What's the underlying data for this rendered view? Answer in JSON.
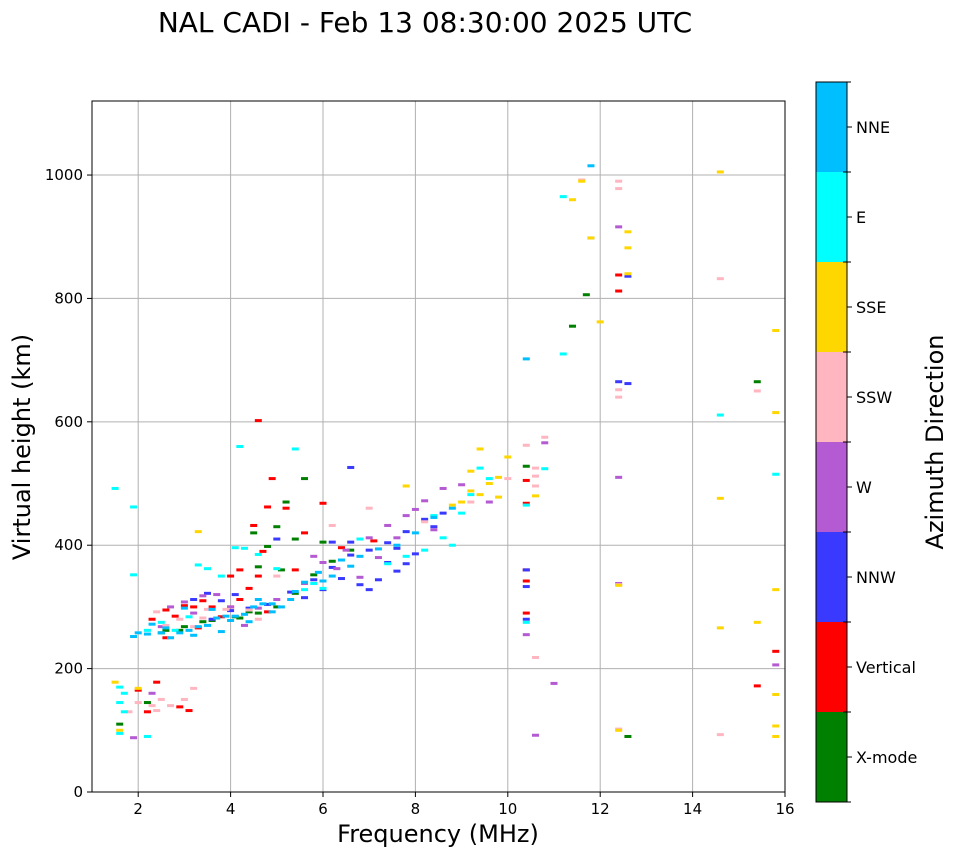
{
  "chart_data": {
    "type": "scatter",
    "title": "NAL CADI - Feb 13 08:30:00 2025 UTC",
    "xlabel": "Frequency (MHz)",
    "ylabel": "Virtual height (km)",
    "xlim": [
      1,
      16
    ],
    "ylim": [
      0,
      1120
    ],
    "xticks": [
      2,
      4,
      6,
      8,
      10,
      12,
      14,
      16
    ],
    "yticks": [
      0,
      200,
      400,
      600,
      800,
      1000
    ],
    "grid": true,
    "colorbar": {
      "label": "Azimuth Direction",
      "categories": [
        {
          "name": "X-mode",
          "color": "#008000"
        },
        {
          "name": "Vertical",
          "color": "#ff0000"
        },
        {
          "name": "NNW",
          "color": "#3a3aff"
        },
        {
          "name": "W",
          "color": "#b45ad2"
        },
        {
          "name": "SSW",
          "color": "#ffb6c1"
        },
        {
          "name": "SSE",
          "color": "#ffd700"
        },
        {
          "name": "E",
          "color": "#00ffff"
        },
        {
          "name": "NNE",
          "color": "#00bfff"
        }
      ]
    },
    "series": [
      {
        "name": "X-mode",
        "points": [
          [
            2.6,
            262
          ],
          [
            3.0,
            268
          ],
          [
            3.6,
            278
          ],
          [
            4.2,
            282
          ],
          [
            4.6,
            290
          ],
          [
            5.0,
            300
          ],
          [
            5.4,
            322
          ],
          [
            5.8,
            352
          ],
          [
            6.2,
            374
          ],
          [
            6.6,
            392
          ],
          [
            4.8,
            398
          ],
          [
            5.0,
            430
          ],
          [
            5.2,
            470
          ],
          [
            5.6,
            508
          ],
          [
            4.6,
            365
          ],
          [
            5.4,
            410
          ],
          [
            4.4,
            292
          ],
          [
            3.4,
            276
          ],
          [
            2.9,
            262
          ],
          [
            2.5,
            258
          ],
          [
            4.1,
            284
          ],
          [
            5.1,
            360
          ],
          [
            6.0,
            405
          ],
          [
            10.4,
            528
          ],
          [
            11.4,
            755
          ],
          [
            11.7,
            806
          ],
          [
            12.6,
            90
          ],
          [
            15.4,
            665
          ],
          [
            1.6,
            110
          ],
          [
            2.2,
            145
          ],
          [
            4.5,
            420
          ]
        ]
      },
      {
        "name": "Vertical",
        "points": [
          [
            2.3,
            280
          ],
          [
            2.6,
            295
          ],
          [
            2.8,
            285
          ],
          [
            3.0,
            302
          ],
          [
            3.2,
            300
          ],
          [
            3.4,
            310
          ],
          [
            3.6,
            300
          ],
          [
            3.8,
            284
          ],
          [
            4.0,
            300
          ],
          [
            4.2,
            312
          ],
          [
            4.4,
            330
          ],
          [
            4.0,
            350
          ],
          [
            4.2,
            360
          ],
          [
            4.6,
            350
          ],
          [
            4.7,
            390
          ],
          [
            4.5,
            432
          ],
          [
            4.8,
            462
          ],
          [
            4.6,
            602
          ],
          [
            5.2,
            460
          ],
          [
            5.4,
            360
          ],
          [
            4.9,
            508
          ],
          [
            6.4,
            396
          ],
          [
            5.6,
            420
          ],
          [
            6.0,
            468
          ],
          [
            7.1,
            407
          ],
          [
            3.1,
            132
          ],
          [
            2.9,
            138
          ],
          [
            2.2,
            130
          ],
          [
            2.0,
            165
          ],
          [
            2.4,
            178
          ],
          [
            10.4,
            468
          ],
          [
            10.4,
            505
          ],
          [
            10.4,
            290
          ],
          [
            10.4,
            342
          ],
          [
            10.4,
            360
          ],
          [
            12.4,
            812
          ],
          [
            12.4,
            838
          ],
          [
            15.4,
            172
          ],
          [
            15.8,
            228
          ],
          [
            2.6,
            250
          ],
          [
            3.3,
            266
          ],
          [
            4.8,
            292
          ]
        ]
      },
      {
        "name": "NNW",
        "points": [
          [
            3.2,
            312
          ],
          [
            3.5,
            322
          ],
          [
            3.8,
            310
          ],
          [
            4.0,
            294
          ],
          [
            4.4,
            298
          ],
          [
            4.8,
            304
          ],
          [
            5.3,
            324
          ],
          [
            5.8,
            344
          ],
          [
            6.2,
            364
          ],
          [
            6.6,
            384
          ],
          [
            7.0,
            392
          ],
          [
            7.4,
            404
          ],
          [
            7.8,
            422
          ],
          [
            8.2,
            442
          ],
          [
            8.6,
            452
          ],
          [
            6.4,
            346
          ],
          [
            6.8,
            336
          ],
          [
            7.2,
            344
          ],
          [
            7.6,
            358
          ],
          [
            7.8,
            370
          ],
          [
            8.0,
            386
          ],
          [
            6.6,
            405
          ],
          [
            7.4,
            372
          ],
          [
            7.0,
            328
          ],
          [
            6.2,
            405
          ],
          [
            7.6,
            395
          ],
          [
            8.4,
            430
          ],
          [
            6.6,
            526
          ],
          [
            5.0,
            410
          ],
          [
            6.0,
            328
          ],
          [
            12.4,
            665
          ],
          [
            12.6,
            662
          ],
          [
            11.8,
            898
          ],
          [
            12.6,
            836
          ],
          [
            10.4,
            360
          ],
          [
            10.4,
            333
          ],
          [
            10.4,
            280
          ],
          [
            3.6,
            280
          ],
          [
            4.1,
            320
          ],
          [
            5.6,
            315
          ]
        ]
      },
      {
        "name": "W",
        "points": [
          [
            2.5,
            268
          ],
          [
            2.7,
            300
          ],
          [
            3.0,
            308
          ],
          [
            3.4,
            318
          ],
          [
            3.7,
            320
          ],
          [
            4.0,
            300
          ],
          [
            4.6,
            298
          ],
          [
            5.0,
            312
          ],
          [
            5.6,
            338
          ],
          [
            6.0,
            372
          ],
          [
            6.5,
            392
          ],
          [
            7.0,
            412
          ],
          [
            7.4,
            432
          ],
          [
            7.8,
            448
          ],
          [
            8.2,
            472
          ],
          [
            8.6,
            492
          ],
          [
            9.0,
            498
          ],
          [
            8.0,
            458
          ],
          [
            7.2,
            380
          ],
          [
            6.8,
            348
          ],
          [
            6.3,
            362
          ],
          [
            5.8,
            382
          ],
          [
            7.6,
            412
          ],
          [
            8.4,
            425
          ],
          [
            9.6,
            470
          ],
          [
            10.8,
            566
          ],
          [
            12.4,
            916
          ],
          [
            12.4,
            510
          ],
          [
            12.4,
            338
          ],
          [
            10.4,
            255
          ],
          [
            10.6,
            92
          ],
          [
            11.0,
            176
          ],
          [
            15.8,
            206
          ],
          [
            1.9,
            88
          ],
          [
            2.3,
            160
          ],
          [
            3.2,
            290
          ],
          [
            4.3,
            270
          ]
        ]
      },
      {
        "name": "SSW",
        "points": [
          [
            2.4,
            292
          ],
          [
            2.6,
            270
          ],
          [
            2.9,
            280
          ],
          [
            3.2,
            268
          ],
          [
            3.5,
            296
          ],
          [
            3.9,
            296
          ],
          [
            4.4,
            295
          ],
          [
            5.0,
            350
          ],
          [
            6.2,
            432
          ],
          [
            7.0,
            460
          ],
          [
            8.2,
            438
          ],
          [
            9.2,
            470
          ],
          [
            10.0,
            508
          ],
          [
            10.6,
            496
          ],
          [
            10.6,
            512
          ],
          [
            10.6,
            525
          ],
          [
            10.8,
            575
          ],
          [
            10.4,
            562
          ],
          [
            12.4,
            978
          ],
          [
            12.4,
            990
          ],
          [
            12.4,
            640
          ],
          [
            12.4,
            652
          ],
          [
            12.4,
            102
          ],
          [
            12.4,
            336
          ],
          [
            14.6,
            93
          ],
          [
            14.6,
            832
          ],
          [
            15.4,
            650
          ],
          [
            10.6,
            218
          ],
          [
            2.0,
            145
          ],
          [
            2.3,
            140
          ],
          [
            2.5,
            150
          ],
          [
            2.7,
            140
          ],
          [
            3.0,
            150
          ],
          [
            3.2,
            168
          ],
          [
            2.4,
            132
          ],
          [
            1.8,
            130
          ],
          [
            11.6,
            992
          ],
          [
            3.4,
            282
          ],
          [
            4.6,
            280
          ]
        ]
      },
      {
        "name": "SSE",
        "points": [
          [
            9.0,
            470
          ],
          [
            9.2,
            488
          ],
          [
            9.4,
            482
          ],
          [
            9.6,
            500
          ],
          [
            9.2,
            520
          ],
          [
            9.8,
            478
          ],
          [
            9.4,
            556
          ],
          [
            9.8,
            510
          ],
          [
            10.0,
            543
          ],
          [
            10.6,
            480
          ],
          [
            11.4,
            960
          ],
          [
            11.6,
            990
          ],
          [
            11.8,
            898
          ],
          [
            12.6,
            882
          ],
          [
            12.6,
            908
          ],
          [
            12.6,
            840
          ],
          [
            12.0,
            762
          ],
          [
            12.4,
            100
          ],
          [
            12.4,
            335
          ],
          [
            14.6,
            476
          ],
          [
            14.6,
            266
          ],
          [
            14.6,
            1005
          ],
          [
            15.4,
            275
          ],
          [
            15.8,
            748
          ],
          [
            15.8,
            615
          ],
          [
            15.8,
            328
          ],
          [
            15.8,
            158
          ],
          [
            15.8,
            107
          ],
          [
            15.8,
            90
          ],
          [
            3.3,
            422
          ],
          [
            2.0,
            168
          ],
          [
            1.5,
            178
          ],
          [
            1.6,
            100
          ],
          [
            8.8,
            465
          ],
          [
            7.8,
            496
          ]
        ]
      },
      {
        "name": "E",
        "points": [
          [
            2.2,
            262
          ],
          [
            2.5,
            275
          ],
          [
            2.8,
            262
          ],
          [
            3.1,
            284
          ],
          [
            3.3,
            368
          ],
          [
            3.5,
            362
          ],
          [
            3.8,
            350
          ],
          [
            4.1,
            396
          ],
          [
            4.3,
            395
          ],
          [
            4.6,
            385
          ],
          [
            5.0,
            362
          ],
          [
            5.6,
            328
          ],
          [
            6.0,
            330
          ],
          [
            6.8,
            410
          ],
          [
            7.4,
            370
          ],
          [
            7.8,
            382
          ],
          [
            8.2,
            392
          ],
          [
            8.6,
            412
          ],
          [
            8.8,
            400
          ],
          [
            9.4,
            525
          ],
          [
            9.6,
            508
          ],
          [
            9.2,
            482
          ],
          [
            9.0,
            452
          ],
          [
            8.4,
            448
          ],
          [
            4.2,
            560
          ],
          [
            10.8,
            524
          ],
          [
            10.4,
            275
          ],
          [
            10.4,
            465
          ],
          [
            11.2,
            965
          ],
          [
            11.2,
            710
          ],
          [
            14.6,
            611
          ],
          [
            15.8,
            515
          ],
          [
            2.2,
            90
          ],
          [
            1.6,
            145
          ],
          [
            1.7,
            130
          ],
          [
            1.6,
            170
          ],
          [
            1.7,
            160
          ],
          [
            1.5,
            492
          ],
          [
            1.9,
            352
          ],
          [
            1.9,
            462
          ],
          [
            1.6,
            95
          ],
          [
            5.4,
            556
          ],
          [
            5.8,
            338
          ]
        ]
      },
      {
        "name": "NNE",
        "points": [
          [
            2.2,
            256
          ],
          [
            2.3,
            272
          ],
          [
            2.5,
            258
          ],
          [
            2.7,
            250
          ],
          [
            2.9,
            258
          ],
          [
            3.1,
            262
          ],
          [
            3.3,
            268
          ],
          [
            3.5,
            270
          ],
          [
            3.7,
            282
          ],
          [
            3.9,
            285
          ],
          [
            4.1,
            285
          ],
          [
            4.3,
            288
          ],
          [
            4.5,
            300
          ],
          [
            4.7,
            305
          ],
          [
            4.9,
            305
          ],
          [
            5.1,
            300
          ],
          [
            5.3,
            312
          ],
          [
            5.6,
            340
          ],
          [
            5.9,
            356
          ],
          [
            6.2,
            350
          ],
          [
            6.4,
            376
          ],
          [
            6.8,
            382
          ],
          [
            7.2,
            394
          ],
          [
            7.6,
            400
          ],
          [
            8.0,
            420
          ],
          [
            8.4,
            445
          ],
          [
            8.8,
            460
          ],
          [
            3.0,
            298
          ],
          [
            3.6,
            296
          ],
          [
            4.0,
            278
          ],
          [
            4.6,
            312
          ],
          [
            5.4,
            325
          ],
          [
            6.6,
            366
          ],
          [
            10.4,
            702
          ],
          [
            11.8,
            1015
          ],
          [
            2.0,
            258
          ],
          [
            1.9,
            252
          ],
          [
            2.6,
            266
          ],
          [
            3.2,
            254
          ],
          [
            3.8,
            260
          ],
          [
            4.4,
            276
          ],
          [
            4.9,
            292
          ],
          [
            6.0,
            342
          ]
        ]
      }
    ]
  }
}
